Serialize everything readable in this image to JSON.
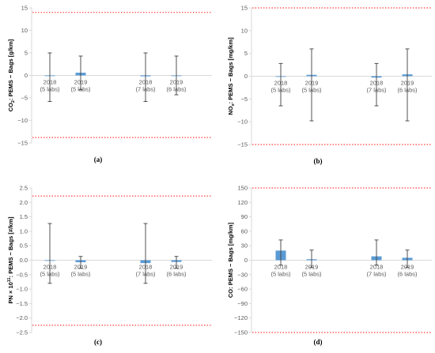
{
  "colors": {
    "bar": "#5b9bd5",
    "limit": "#ff4040",
    "axis": "#d9d9d9",
    "whisker": "#404040"
  },
  "chart_data": [
    {
      "type": "bar",
      "panel_label": "(a)",
      "ylabel_parts": [
        "CO",
        "2",
        ": PEMS − Bags [g/km]"
      ],
      "ylim": [
        -15,
        15
      ],
      "yticks": [
        -15,
        -10,
        -5,
        0,
        5,
        10,
        15
      ],
      "limits": [
        14,
        -13.8
      ],
      "categories": [
        [
          "2018",
          "(5 labs)"
        ],
        [
          "2019",
          "(5 labs)"
        ],
        [
          "2018",
          "(7 labs)"
        ],
        [
          "2019",
          "(6 labs)"
        ]
      ],
      "values": [
        0.0,
        0.6,
        -0.2,
        0.0
      ],
      "error": [
        [
          -5.8,
          5.0
        ],
        [
          -3.2,
          4.3
        ],
        [
          -5.8,
          5.0
        ],
        [
          -4.3,
          4.3
        ]
      ]
    },
    {
      "type": "bar",
      "panel_label": "(b)",
      "ylabel_parts": [
        "NO",
        "x",
        ": PEMS − Bags [mg/km]"
      ],
      "ylim": [
        -15,
        15
      ],
      "yticks": [
        -15,
        -10,
        -5,
        0,
        5,
        10,
        15
      ],
      "limits": [
        15,
        -15
      ],
      "categories": [
        [
          "2018",
          "(5 labs)"
        ],
        [
          "2019",
          "(5 labs)"
        ],
        [
          "2018",
          "(7 labs)"
        ],
        [
          "2019",
          "(6 labs)"
        ]
      ],
      "values": [
        0.0,
        0.3,
        -0.3,
        0.4
      ],
      "error": [
        [
          -6.5,
          2.8
        ],
        [
          -9.8,
          6.0
        ],
        [
          -6.5,
          2.8
        ],
        [
          -9.8,
          6.0
        ]
      ]
    },
    {
      "type": "bar",
      "panel_label": "(c)",
      "ylabel_parts": [
        "PN × 10",
        "11",
        ": PEMS − Bags [#/km]"
      ],
      "ylim": [
        -2.5,
        2.5
      ],
      "yticks": [
        -2.5,
        -2.0,
        -1.5,
        -1.0,
        -0.5,
        0.0,
        0.5,
        1.0,
        1.5,
        2.0,
        2.5
      ],
      "limits": [
        2.22,
        -2.25
      ],
      "categories": [
        [
          "2018",
          "(5 labs)"
        ],
        [
          "2019",
          "(5 labs)"
        ],
        [
          "2018",
          "(7 labs)"
        ],
        [
          "2019",
          "(6 labs)"
        ]
      ],
      "values": [
        0.0,
        -0.07,
        -0.1,
        -0.06
      ],
      "error": [
        [
          -0.8,
          1.27
        ],
        [
          -0.28,
          0.13
        ],
        [
          -0.8,
          1.27
        ],
        [
          -0.28,
          0.13
        ]
      ]
    },
    {
      "type": "bar",
      "panel_label": "(d)",
      "ylabel_parts": [
        "CO: PEMS − Bags [mg/km]"
      ],
      "ylim": [
        -150,
        150
      ],
      "yticks": [
        -150,
        -120,
        -90,
        -60,
        -30,
        0,
        30,
        60,
        90,
        120,
        150
      ],
      "limits": [
        150,
        -150
      ],
      "categories": [
        [
          "2018",
          "(5 labs)"
        ],
        [
          "2019",
          "(5 labs)"
        ],
        [
          "2018",
          "(7 labs)"
        ],
        [
          "2019",
          "(6 labs)"
        ]
      ],
      "values": [
        20,
        2,
        8,
        5
      ],
      "error": [
        [
          -10,
          42
        ],
        [
          -15,
          21
        ],
        [
          -10,
          42
        ],
        [
          -15,
          21
        ]
      ]
    }
  ]
}
